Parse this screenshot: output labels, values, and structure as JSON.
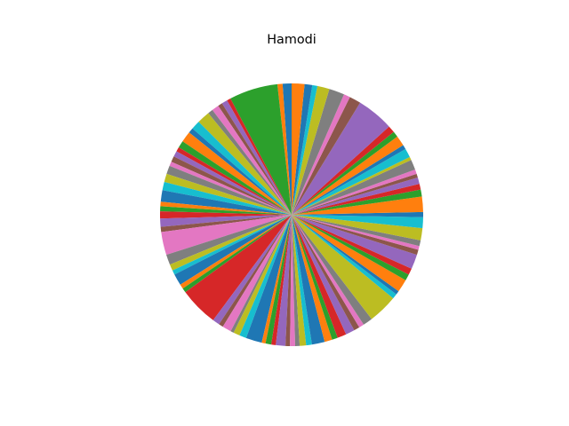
{
  "chart_data": {
    "type": "pie",
    "title": "Hamodi",
    "start_angle": 90,
    "direction": "counterclockwise",
    "palette": [
      "#1f77b4",
      "#ff7f0e",
      "#2ca02c",
      "#d62728",
      "#9467bd",
      "#8c564b",
      "#e377c2",
      "#7f7f7f",
      "#bcbd22",
      "#17becf"
    ],
    "values": [
      1.4,
      0.8,
      7.6,
      0.6,
      0.9,
      0.7,
      1.1,
      0.8,
      2.0,
      1.4,
      0.8,
      1.7,
      1.1,
      0.7,
      0.9,
      0.9,
      0.7,
      1.3,
      1.3,
      1.3,
      1.8,
      0.7,
      0.8,
      1.1,
      1.3,
      0.8,
      3.6,
      1.6,
      1.0,
      0.7,
      1.8,
      0.7,
      0.7,
      6.1,
      1.1,
      0.7,
      1.4,
      0.5,
      1.0,
      1.1,
      2.5,
      0.6,
      0.9,
      0.7,
      1.5,
      0.7,
      0.8,
      0.7,
      1.0,
      0.9,
      2.0,
      1.2,
      0.9,
      1.4,
      1.4,
      0.9,
      0.8,
      1.5,
      4.6,
      0.8,
      0.6,
      2.0,
      1.0,
      1.0,
      2.3,
      0.8,
      0.6,
      0.9,
      1.9,
      1.7,
      0.8,
      2.4,
      1.1,
      0.9,
      1.0,
      0.6,
      0.7,
      1.6,
      0.5,
      1.4,
      0.7,
      1.6,
      0.9,
      1.1,
      5.8,
      1.8,
      1.0,
      2.4,
      1.9,
      0.8,
      1.2,
      2.0
    ]
  }
}
